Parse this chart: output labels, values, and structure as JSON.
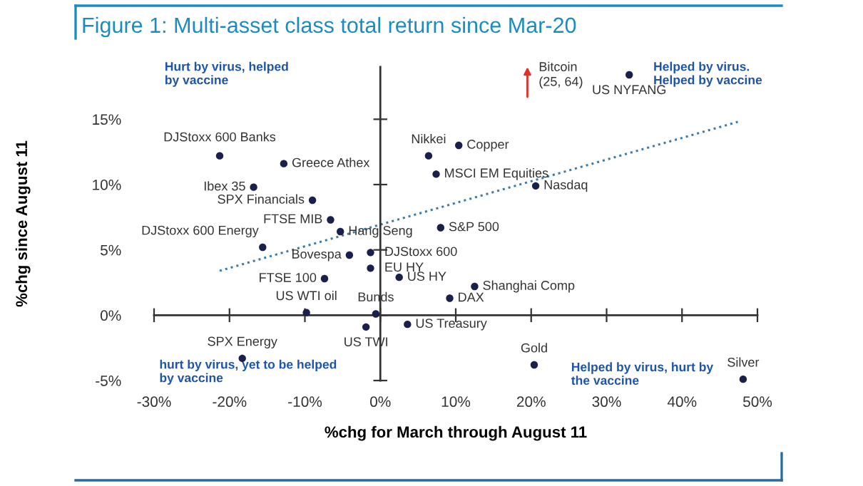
{
  "chart_data": {
    "type": "scatter",
    "title": "Figure 1: Multi-asset class total return since Mar-20",
    "xlabel": "%chg for March through August 11",
    "ylabel": "%chg since August 11",
    "xlim": [
      -30,
      50
    ],
    "ylim": [
      -5,
      19
    ],
    "xticks": [
      {
        "value": -30,
        "label": "-30%"
      },
      {
        "value": -20,
        "label": "-20%"
      },
      {
        "value": -10,
        "label": "-10%"
      },
      {
        "value": 0,
        "label": "0%"
      },
      {
        "value": 10,
        "label": "10%"
      },
      {
        "value": 20,
        "label": "20%"
      },
      {
        "value": 30,
        "label": "30%"
      },
      {
        "value": 40,
        "label": "40%"
      },
      {
        "value": 50,
        "label": "50%"
      }
    ],
    "yticks": [
      {
        "value": -5,
        "label": "-5%"
      },
      {
        "value": 0,
        "label": "0%"
      },
      {
        "value": 5,
        "label": "5%"
      },
      {
        "value": 10,
        "label": "10%"
      },
      {
        "value": 15,
        "label": "15%"
      }
    ],
    "series": [
      {
        "marker": "circle",
        "color": "#1b1f4b",
        "x": [
          -21.3,
          -12.8,
          -16.8,
          -9.0,
          -6.6,
          -5.3,
          -15.6,
          -4.1,
          -1.3,
          -1.3,
          2.5,
          -7.4,
          -9.8,
          -0.6,
          -1.9,
          -18.3,
          3.6,
          12.5,
          9.2,
          8.0,
          20.6,
          7.4,
          6.4,
          10.4,
          33.0,
          20.4,
          48.1
        ],
        "values": [
          12.2,
          11.6,
          9.8,
          8.8,
          7.3,
          6.4,
          5.2,
          4.6,
          4.8,
          3.6,
          2.9,
          2.8,
          0.2,
          0.1,
          -0.9,
          -3.3,
          -0.7,
          2.2,
          1.3,
          6.7,
          9.9,
          10.8,
          12.2,
          13.0,
          18.4,
          -3.8,
          -4.9
        ]
      },
      {
        "type": "line",
        "color": "#3f7ba6",
        "line_style": "dotted",
        "x": [
          -21.3,
          47.4
        ],
        "values": [
          3.4,
          14.8
        ]
      }
    ],
    "annotations": [
      {
        "text": "DJStoxx 600 Banks",
        "x": -21.3,
        "y": 12.2
      },
      {
        "text": "Greece Athex",
        "x": -12.8,
        "y": 11.6
      },
      {
        "text": "Ibex 35",
        "x": -16.8,
        "y": 9.8
      },
      {
        "text": "SPX Financials",
        "x": -9.0,
        "y": 8.8
      },
      {
        "text": "FTSE MIB",
        "x": -6.6,
        "y": 7.3
      },
      {
        "text": "Hang Seng",
        "x": -5.3,
        "y": 6.4
      },
      {
        "text": "DJStoxx 600 Energy",
        "x": -15.6,
        "y": 5.2
      },
      {
        "text": "Bovespa",
        "x": -4.1,
        "y": 4.6
      },
      {
        "text": "DJStoxx 600",
        "x": -1.3,
        "y": 4.8
      },
      {
        "text": "EU HY",
        "x": -1.3,
        "y": 3.6
      },
      {
        "text": "US HY",
        "x": 2.5,
        "y": 2.9
      },
      {
        "text": "FTSE 100",
        "x": -7.4,
        "y": 2.8
      },
      {
        "text": "US WTI oil",
        "x": -9.8,
        "y": 0.2
      },
      {
        "text": "Bunds",
        "x": -0.6,
        "y": 0.1
      },
      {
        "text": "US TWI",
        "x": -1.9,
        "y": -0.9
      },
      {
        "text": "SPX Energy",
        "x": -18.3,
        "y": -3.3
      },
      {
        "text": "US Treasury",
        "x": 3.6,
        "y": -0.7
      },
      {
        "text": "Shanghai Comp",
        "x": 12.5,
        "y": 2.2
      },
      {
        "text": "DAX",
        "x": 9.2,
        "y": 1.3
      },
      {
        "text": "S&P 500",
        "x": 8.0,
        "y": 6.7
      },
      {
        "text": "Nasdaq",
        "x": 20.6,
        "y": 9.9
      },
      {
        "text": "MSCI EM Equities",
        "x": 7.4,
        "y": 10.8
      },
      {
        "text": "Nikkei",
        "x": 6.4,
        "y": 12.2
      },
      {
        "text": "Copper",
        "x": 10.4,
        "y": 13.0
      },
      {
        "text": "US NYFANG",
        "x": 33.0,
        "y": 18.4
      },
      {
        "text": "Gold",
        "x": 20.4,
        "y": -3.8
      },
      {
        "text": "Silver",
        "x": 48.1,
        "y": -4.9
      },
      "Hurt by virus, helped\nby vaccine",
      "Helped by virus.\nHelped by vaccine",
      "hurt by virus, yet to be helped\nby vaccine",
      "Helped by virus, hurt by\nthe vaccine",
      "Bitcoin\n(25, 64)"
    ]
  }
}
